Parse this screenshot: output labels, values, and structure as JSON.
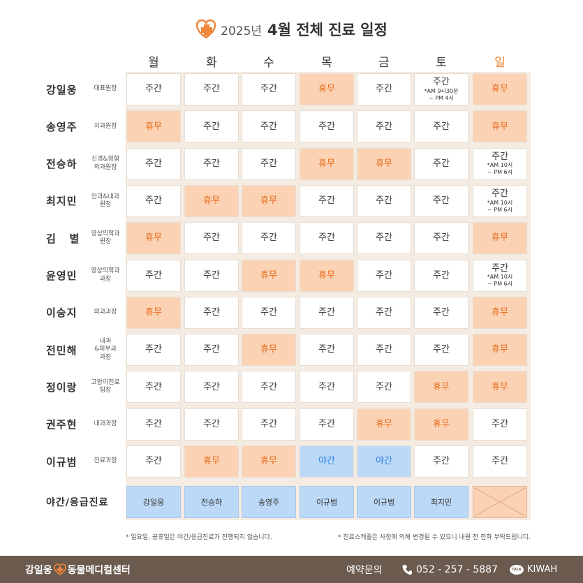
{
  "header": {
    "year": "2025년",
    "title": "4월 전체 진료 일정"
  },
  "days": [
    "월",
    "화",
    "수",
    "목",
    "금",
    "토",
    "일"
  ],
  "rows": [
    {
      "name": "강일웅",
      "role": "대표원장",
      "cells": [
        {
          "type": "day",
          "text": "주간"
        },
        {
          "type": "day",
          "text": "주간"
        },
        {
          "type": "day",
          "text": "주간"
        },
        {
          "type": "off",
          "text": "휴무"
        },
        {
          "type": "day",
          "text": "주간"
        },
        {
          "type": "day",
          "text": "주간",
          "sub1": "*AM 9시30분",
          "sub2": "~ PM 4시"
        },
        {
          "type": "off",
          "text": "휴무"
        }
      ]
    },
    {
      "name": "송영주",
      "role": "치과원장",
      "cells": [
        {
          "type": "off",
          "text": "휴무"
        },
        {
          "type": "day",
          "text": "주간"
        },
        {
          "type": "day",
          "text": "주간"
        },
        {
          "type": "day",
          "text": "주간"
        },
        {
          "type": "day",
          "text": "주간"
        },
        {
          "type": "day",
          "text": "주간"
        },
        {
          "type": "off",
          "text": "휴무"
        }
      ]
    },
    {
      "name": "전승하",
      "role": "신경&정형\n외과원장",
      "cells": [
        {
          "type": "day",
          "text": "주간"
        },
        {
          "type": "day",
          "text": "주간"
        },
        {
          "type": "day",
          "text": "주간"
        },
        {
          "type": "off",
          "text": "휴무"
        },
        {
          "type": "off",
          "text": "휴무"
        },
        {
          "type": "day",
          "text": "주간"
        },
        {
          "type": "day",
          "text": "주간",
          "sub1": "*AM 10시",
          "sub2": "~ PM 6시"
        }
      ]
    },
    {
      "name": "최지민",
      "role": "안과&내과\n원장",
      "cells": [
        {
          "type": "day",
          "text": "주간"
        },
        {
          "type": "off",
          "text": "휴무"
        },
        {
          "type": "off",
          "text": "휴무"
        },
        {
          "type": "day",
          "text": "주간"
        },
        {
          "type": "day",
          "text": "주간"
        },
        {
          "type": "day",
          "text": "주간"
        },
        {
          "type": "day",
          "text": "주간",
          "sub1": "*AM 10시",
          "sub2": "~ PM 6시"
        }
      ]
    },
    {
      "name": "김   별",
      "role": "영상의학과\n원장",
      "cells": [
        {
          "type": "off",
          "text": "휴무"
        },
        {
          "type": "day",
          "text": "주간"
        },
        {
          "type": "day",
          "text": "주간"
        },
        {
          "type": "day",
          "text": "주간"
        },
        {
          "type": "day",
          "text": "주간"
        },
        {
          "type": "day",
          "text": "주간"
        },
        {
          "type": "off",
          "text": "휴무"
        }
      ]
    },
    {
      "name": "윤영민",
      "role": "영상의학과\n과장",
      "cells": [
        {
          "type": "day",
          "text": "주간"
        },
        {
          "type": "day",
          "text": "주간"
        },
        {
          "type": "off",
          "text": "휴무"
        },
        {
          "type": "off",
          "text": "휴무"
        },
        {
          "type": "day",
          "text": "주간"
        },
        {
          "type": "day",
          "text": "주간"
        },
        {
          "type": "day",
          "text": "주간",
          "sub1": "*AM 10시",
          "sub2": "~ PM 6시"
        }
      ]
    },
    {
      "name": "이승지",
      "role": "외과과장",
      "cells": [
        {
          "type": "off",
          "text": "휴무"
        },
        {
          "type": "day",
          "text": "주간"
        },
        {
          "type": "day",
          "text": "주간"
        },
        {
          "type": "day",
          "text": "주간"
        },
        {
          "type": "day",
          "text": "주간"
        },
        {
          "type": "day",
          "text": "주간"
        },
        {
          "type": "off",
          "text": "휴무"
        }
      ]
    },
    {
      "name": "전민해",
      "role": "내과\n&피부과\n과장",
      "cells": [
        {
          "type": "day",
          "text": "주간"
        },
        {
          "type": "day",
          "text": "주간"
        },
        {
          "type": "off",
          "text": "휴무"
        },
        {
          "type": "day",
          "text": "주간"
        },
        {
          "type": "day",
          "text": "주간"
        },
        {
          "type": "day",
          "text": "주간"
        },
        {
          "type": "off",
          "text": "휴무"
        }
      ]
    },
    {
      "name": "정이랑",
      "role": "고양이진료\n팀장",
      "cells": [
        {
          "type": "day",
          "text": "주간"
        },
        {
          "type": "day",
          "text": "주간"
        },
        {
          "type": "day",
          "text": "주간"
        },
        {
          "type": "day",
          "text": "주간"
        },
        {
          "type": "day",
          "text": "주간"
        },
        {
          "type": "off",
          "text": "휴무"
        },
        {
          "type": "off",
          "text": "휴무"
        }
      ]
    },
    {
      "name": "권주현",
      "role": "내과과장",
      "cells": [
        {
          "type": "day",
          "text": "주간"
        },
        {
          "type": "day",
          "text": "주간"
        },
        {
          "type": "day",
          "text": "주간"
        },
        {
          "type": "day",
          "text": "주간"
        },
        {
          "type": "off",
          "text": "휴무"
        },
        {
          "type": "off",
          "text": "휴무"
        },
        {
          "type": "day",
          "text": "주간"
        }
      ]
    },
    {
      "name": "이규범",
      "role": "진료과장",
      "cells": [
        {
          "type": "day",
          "text": "주간"
        },
        {
          "type": "off",
          "text": "휴무"
        },
        {
          "type": "off",
          "text": "휴무"
        },
        {
          "type": "night",
          "text": "야간"
        },
        {
          "type": "night",
          "text": "야간"
        },
        {
          "type": "day",
          "text": "주간"
        },
        {
          "type": "day",
          "text": "주간"
        }
      ]
    }
  ],
  "emergency": {
    "label": "야간/응급진료",
    "doctors": [
      "강일웅",
      "전승하",
      "송영주",
      "이규범",
      "이규범",
      "최지민",
      ""
    ]
  },
  "notes": {
    "left": "* 일요일, 공휴일은 야간/응급진료가 진행되지 않습니다.",
    "right": "* 진료스케줄은 사정에 의해 변경될 수 있으니 내원 전 전화 부탁드립니다."
  },
  "footer": {
    "brand_left": "강일웅",
    "brand_right": "동물메디컬센터",
    "contact_label": "예약문의",
    "phone": "052 - 257 - 5887",
    "kakao_icon_text": "TALK",
    "kakao_id": "KIWAH"
  },
  "colors": {
    "off_bg": "#fbd3b4",
    "off_text": "#e86a1a",
    "night_bg": "#bcd9f7",
    "night_text": "#2d7ee0",
    "sunday": "#f07a22",
    "footer_bg": "#6b5a4e"
  },
  "icons": [
    "heart-plus-logo-icon",
    "phone-icon",
    "kakao-talk-icon",
    "cross-out-icon"
  ]
}
